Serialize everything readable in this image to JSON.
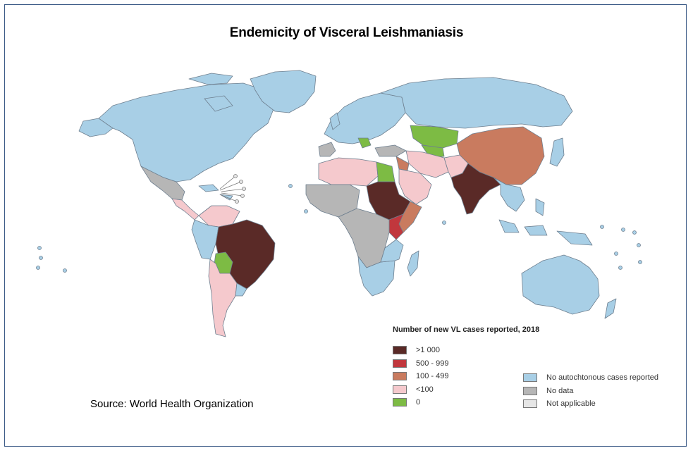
{
  "title": "Endemicity of Visceral Leishmaniasis",
  "source": "Source: World Health Organization",
  "legend": {
    "title": "Number of new VL cases reported, 2018",
    "case_classes": [
      {
        "label": ">1 000",
        "color": "#5a2a27"
      },
      {
        "label": "500 - 999",
        "color": "#c1373d"
      },
      {
        "label": "100 - 499",
        "color": "#c97b5f"
      },
      {
        "label": "<100",
        "color": "#f5c9cd"
      },
      {
        "label": "0",
        "color": "#7dbb44"
      }
    ],
    "other_classes": [
      {
        "label": "No autochtonous cases reported",
        "color": "#a8cfe6"
      },
      {
        "label": "No data",
        "color": "#b6b6b6"
      },
      {
        "label": "Not applicable",
        "color": "#e6e6e6"
      }
    ]
  },
  "colors": {
    "border": "#4a6a9a",
    "country_stroke": "#6e7f8f"
  }
}
